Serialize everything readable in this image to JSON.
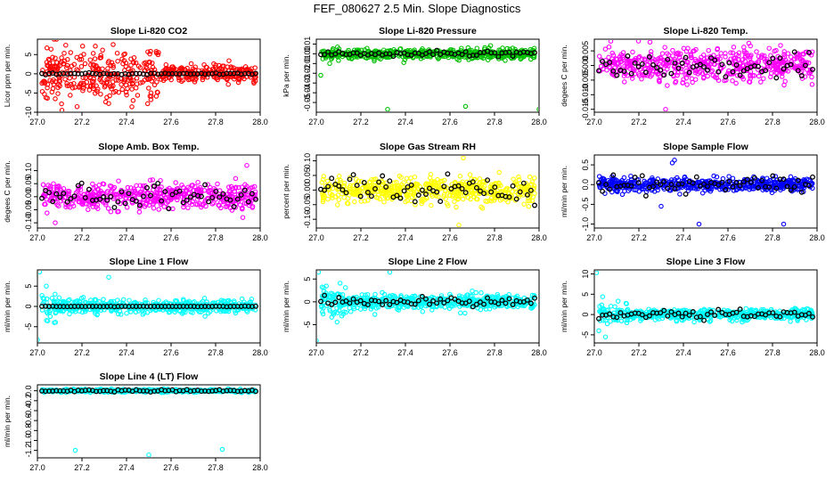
{
  "title": "FEF_080627  2.5 Min. Slope Diagnostics",
  "chart_data": [
    {
      "type": "scatter",
      "title": "Slope Li-820 CO2",
      "ylabel": "Licor ppm per min.",
      "color": "#ff0000",
      "xlim": [
        27.0,
        28.0
      ],
      "ylim": [
        -10,
        9
      ],
      "xticks": [
        27.0,
        27.2,
        27.4,
        27.6,
        27.8,
        28.0
      ],
      "xtick_labels": [
        "27.0",
        "27.2",
        "27.4",
        "27.6",
        "27.8",
        "28.0"
      ],
      "yticks": [
        -10,
        -5,
        0,
        5
      ],
      "ytick_labels": [
        "-10",
        "-5",
        "0",
        "5"
      ],
      "spread": 2.2,
      "early_scale": 2.8,
      "early_until": 27.55,
      "dark_spread": 0.2,
      "outliers": [
        [
          27.11,
          -9.5
        ],
        [
          27.26,
          7.2
        ],
        [
          27.34,
          7.6
        ],
        [
          27.08,
          -6.5
        ]
      ],
      "seed": 11
    },
    {
      "type": "scatter",
      "title": "Slope Li-820 Pressure",
      "ylabel": "kPa per min.",
      "color": "#00c000",
      "xlim": [
        27.0,
        28.0
      ],
      "ylim": [
        -0.06,
        0.015
      ],
      "xticks": [
        27.0,
        27.2,
        27.4,
        27.6,
        27.8,
        28.0
      ],
      "xtick_labels": [
        "27.0",
        "27.2",
        "27.4",
        "27.6",
        "27.8",
        "28.0"
      ],
      "yticks": [
        -0.05,
        -0.04,
        -0.03,
        -0.02,
        -0.01,
        0.0,
        0.01
      ],
      "ytick_labels": [
        "-0.05",
        "-0.04",
        "-0.03",
        "-0.02",
        "-0.01",
        "0.00",
        "0.01"
      ],
      "spread": 0.0045,
      "early_scale": 1.0,
      "early_until": 27.0,
      "dark_spread": 0.003,
      "outliers": [
        [
          27.32,
          -0.057
        ],
        [
          27.67,
          -0.054
        ],
        [
          28.0,
          -0.057
        ],
        [
          27.02,
          -0.022
        ],
        [
          27.06,
          -0.01
        ]
      ],
      "seed": 23
    },
    {
      "type": "scatter",
      "title": "Slope Li-820 Temp.",
      "ylabel": "degees C per min.",
      "color": "#ff00ff",
      "xlim": [
        27.0,
        28.0
      ],
      "ylim": [
        -0.016,
        0.009
      ],
      "xticks": [
        27.0,
        27.2,
        27.4,
        27.6,
        27.8,
        28.0
      ],
      "xtick_labels": [
        "27.0",
        "27.2",
        "27.4",
        "27.6",
        "27.8",
        "28.0"
      ],
      "yticks": [
        -0.015,
        -0.01,
        -0.005,
        0.0,
        0.005
      ],
      "ytick_labels": [
        "-0.015",
        "-0.010",
        "-0.005",
        "0.000",
        "0.005"
      ],
      "spread": 0.005,
      "early_scale": 1.0,
      "early_until": 27.0,
      "dark_spread": 0.005,
      "outliers": [
        [
          27.32,
          -0.015
        ],
        [
          27.25,
          0.008
        ]
      ],
      "seed": 37
    },
    {
      "type": "scatter",
      "title": "Slope Amb. Box Temp.",
      "ylabel": "degees C per min.",
      "color": "#ff00ff",
      "xlim": [
        27.0,
        28.0
      ],
      "ylim": [
        -0.12,
        0.16
      ],
      "xticks": [
        27.0,
        27.2,
        27.4,
        27.6,
        27.8,
        28.0
      ],
      "xtick_labels": [
        "27.0",
        "27.2",
        "27.4",
        "27.6",
        "27.8",
        "28.0"
      ],
      "yticks": [
        -0.1,
        -0.05,
        0.0,
        0.05,
        0.1
      ],
      "ytick_labels": [
        "-0.10",
        "-0.05",
        "0.00",
        "0.05",
        "0.10"
      ],
      "spread": 0.045,
      "early_scale": 1.0,
      "early_until": 27.0,
      "dark_spread": 0.045,
      "outliers": [
        [
          27.08,
          -0.1
        ],
        [
          27.94,
          0.12
        ]
      ],
      "seed": 41
    },
    {
      "type": "scatter",
      "title": "Slope Gas Stream RH",
      "ylabel": "percent per min.",
      "color": "#ffff00",
      "xlim": [
        27.0,
        28.0
      ],
      "ylim": [
        -0.13,
        0.12
      ],
      "xticks": [
        27.0,
        27.2,
        27.4,
        27.6,
        27.8,
        28.0
      ],
      "xtick_labels": [
        "27.0",
        "27.2",
        "27.4",
        "27.6",
        "27.8",
        "28.0"
      ],
      "yticks": [
        -0.1,
        -0.05,
        0.0,
        0.05,
        0.1
      ],
      "ytick_labels": [
        "-0.10",
        "-0.05",
        "0.00",
        "0.05",
        "0.10"
      ],
      "spread": 0.04,
      "early_scale": 1.0,
      "early_until": 27.0,
      "dark_spread": 0.04,
      "outliers": [
        [
          27.66,
          0.11
        ],
        [
          27.64,
          -0.12
        ]
      ],
      "seed": 53
    },
    {
      "type": "scatter",
      "title": "Slope Sample Flow",
      "ylabel": "ml/min per min.",
      "color": "#0000ff",
      "xlim": [
        27.0,
        28.0
      ],
      "ylim": [
        -1.1,
        0.75
      ],
      "xticks": [
        27.0,
        27.2,
        27.4,
        27.6,
        27.8,
        28.0
      ],
      "xtick_labels": [
        "27.0",
        "27.2",
        "27.4",
        "27.6",
        "27.8",
        "28.0"
      ],
      "yticks": [
        -1.0,
        -0.5,
        0.0,
        0.5
      ],
      "ytick_labels": [
        "-1.0",
        "-0.5",
        "0.0",
        "0.5"
      ],
      "spread": 0.14,
      "early_scale": 1.0,
      "early_until": 27.0,
      "dark_spread": 0.22,
      "outliers": [
        [
          27.36,
          0.62
        ],
        [
          27.35,
          0.55
        ],
        [
          27.47,
          -1.0
        ],
        [
          27.85,
          -1.0
        ],
        [
          27.3,
          -0.55
        ]
      ],
      "seed": 67
    },
    {
      "type": "scatter",
      "title": "Slope Line 1 Flow",
      "ylabel": "ml/min per min.",
      "color": "#00ffff",
      "xlim": [
        27.0,
        28.0
      ],
      "ylim": [
        -9,
        9
      ],
      "xticks": [
        27.0,
        27.2,
        27.4,
        27.6,
        27.8,
        28.0
      ],
      "xtick_labels": [
        "27.0",
        "27.2",
        "27.4",
        "27.6",
        "27.8",
        "28.0"
      ],
      "yticks": [
        -5,
        0,
        5
      ],
      "ytick_labels": [
        "-5",
        "0",
        "5"
      ],
      "spread": 1.4,
      "early_scale": 2.0,
      "early_until": 27.1,
      "dark_spread": 0.05,
      "outliers": [
        [
          27.01,
          8.5
        ],
        [
          27.0,
          -8.2
        ],
        [
          27.32,
          7.2
        ],
        [
          27.04,
          5.0
        ]
      ],
      "seed": 71
    },
    {
      "type": "scatter",
      "title": "Slope Line 2 Flow",
      "ylabel": "ml/min per min.",
      "color": "#00ffff",
      "xlim": [
        27.0,
        28.0
      ],
      "ylim": [
        -9,
        7
      ],
      "xticks": [
        27.0,
        27.2,
        27.4,
        27.6,
        27.8,
        28.0
      ],
      "xtick_labels": [
        "27.0",
        "27.2",
        "27.4",
        "27.6",
        "27.8",
        "28.0"
      ],
      "yticks": [
        -5,
        0,
        5
      ],
      "ytick_labels": [
        "-5",
        "0",
        "5"
      ],
      "spread": 1.5,
      "early_scale": 2.0,
      "early_until": 27.15,
      "dark_spread": 1.2,
      "outliers": [
        [
          27.0,
          -8.5
        ],
        [
          27.01,
          6.5
        ],
        [
          27.33,
          6.5
        ]
      ],
      "seed": 83
    },
    {
      "type": "scatter",
      "title": "Slope Line 3 Flow",
      "ylabel": "ml/min per min.",
      "color": "#00ffff",
      "xlim": [
        27.0,
        28.0
      ],
      "ylim": [
        -7,
        11
      ],
      "xticks": [
        27.0,
        27.2,
        27.4,
        27.6,
        27.8,
        28.0
      ],
      "xtick_labels": [
        "27.0",
        "27.2",
        "27.4",
        "27.6",
        "27.8",
        "28.0"
      ],
      "yticks": [
        -5,
        0,
        5,
        10
      ],
      "ytick_labels": [
        "-5",
        "0",
        "5",
        "10"
      ],
      "spread": 1.3,
      "early_scale": 2.0,
      "early_until": 27.15,
      "dark_spread": 1.1,
      "outliers": [
        [
          27.01,
          10.3
        ],
        [
          27.05,
          -5.5
        ],
        [
          27.02,
          -4.0
        ]
      ],
      "seed": 97
    },
    {
      "type": "scatter",
      "title": "Slope Line 4 (LT) Flow",
      "ylabel": "ml/min per min.",
      "color": "#00ffff",
      "xlim": [
        27.0,
        28.0
      ],
      "ylim": [
        -1.35,
        0.12
      ],
      "xticks": [
        27.0,
        27.2,
        27.4,
        27.6,
        27.8,
        28.0
      ],
      "xtick_labels": [
        "27.0",
        "27.2",
        "27.4",
        "27.6",
        "27.8",
        "28.0"
      ],
      "yticks": [
        -1.2,
        -1.0,
        -0.8,
        -0.6,
        -0.4,
        -0.2,
        0.0
      ],
      "ytick_labels": [
        "-1.2",
        "-1.0",
        "-0.8",
        "-0.6",
        "-0.4",
        "-0.2",
        "0.0"
      ],
      "spread": 0.025,
      "early_scale": 1.0,
      "early_until": 27.0,
      "dark_spread": 0.02,
      "outliers": [
        [
          27.17,
          -1.2
        ],
        [
          27.5,
          -1.29
        ],
        [
          27.83,
          -1.18
        ]
      ],
      "seed": 101
    }
  ]
}
